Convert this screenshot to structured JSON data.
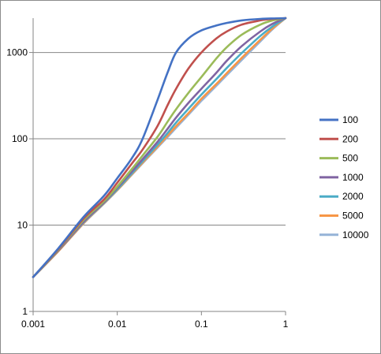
{
  "chart_data": {
    "type": "line",
    "title": "",
    "xlabel": "",
    "ylabel": "",
    "x_scale": "log",
    "y_scale": "log",
    "xlim": [
      0.001,
      1
    ],
    "ylim": [
      1,
      2500
    ],
    "x_ticks": [
      "0.001",
      "0.01",
      "0.1",
      "1"
    ],
    "y_ticks": [
      "1",
      "10",
      "100",
      "1000"
    ],
    "grid": "horizontal major gridlines",
    "legend_position": "right",
    "x": [
      0.001,
      0.002,
      0.004,
      0.007,
      0.01,
      0.015,
      0.02,
      0.03,
      0.04,
      0.05,
      0.07,
      0.1,
      0.15,
      0.2,
      0.3,
      0.5,
      0.7,
      1.0
    ],
    "series": [
      {
        "name": "100",
        "color": "#4472C4",
        "values": [
          2.5,
          5.4,
          12.5,
          22,
          35,
          60,
          100,
          280,
          600,
          1000,
          1450,
          1800,
          2050,
          2200,
          2350,
          2450,
          2480,
          2500
        ]
      },
      {
        "name": "200",
        "color": "#C0504D",
        "values": [
          2.5,
          5.3,
          12,
          20,
          31,
          52,
          75,
          140,
          250,
          380,
          650,
          1000,
          1450,
          1750,
          2100,
          2350,
          2450,
          2500
        ]
      },
      {
        "name": "500",
        "color": "#9BBB59",
        "values": [
          2.5,
          5.2,
          11.5,
          19,
          28,
          45,
          64,
          105,
          160,
          220,
          340,
          520,
          850,
          1150,
          1600,
          2100,
          2350,
          2500
        ]
      },
      {
        "name": "1000",
        "color": "#8064A2",
        "values": [
          2.5,
          5.1,
          11,
          18.5,
          27,
          42,
          58,
          92,
          132,
          176,
          260,
          380,
          580,
          800,
          1180,
          1750,
          2150,
          2500
        ]
      },
      {
        "name": "2000",
        "color": "#4BACC6",
        "values": [
          2.5,
          5.1,
          10.8,
          18.2,
          26,
          40,
          55,
          85,
          118,
          154,
          222,
          325,
          490,
          660,
          980,
          1550,
          2000,
          2500
        ]
      },
      {
        "name": "5000",
        "color": "#F79646",
        "values": [
          2.5,
          5.0,
          10.6,
          18,
          25.5,
          39,
          53,
          81,
          110,
          140,
          198,
          290,
          430,
          575,
          860,
          1400,
          1900,
          2500
        ]
      },
      {
        "name": "10000",
        "color": "#95B3D7",
        "values": [
          2.5,
          5.0,
          10.5,
          17.8,
          25.3,
          38.5,
          52,
          79,
          106,
          134,
          190,
          275,
          410,
          545,
          815,
          1340,
          1860,
          2500
        ]
      }
    ]
  }
}
